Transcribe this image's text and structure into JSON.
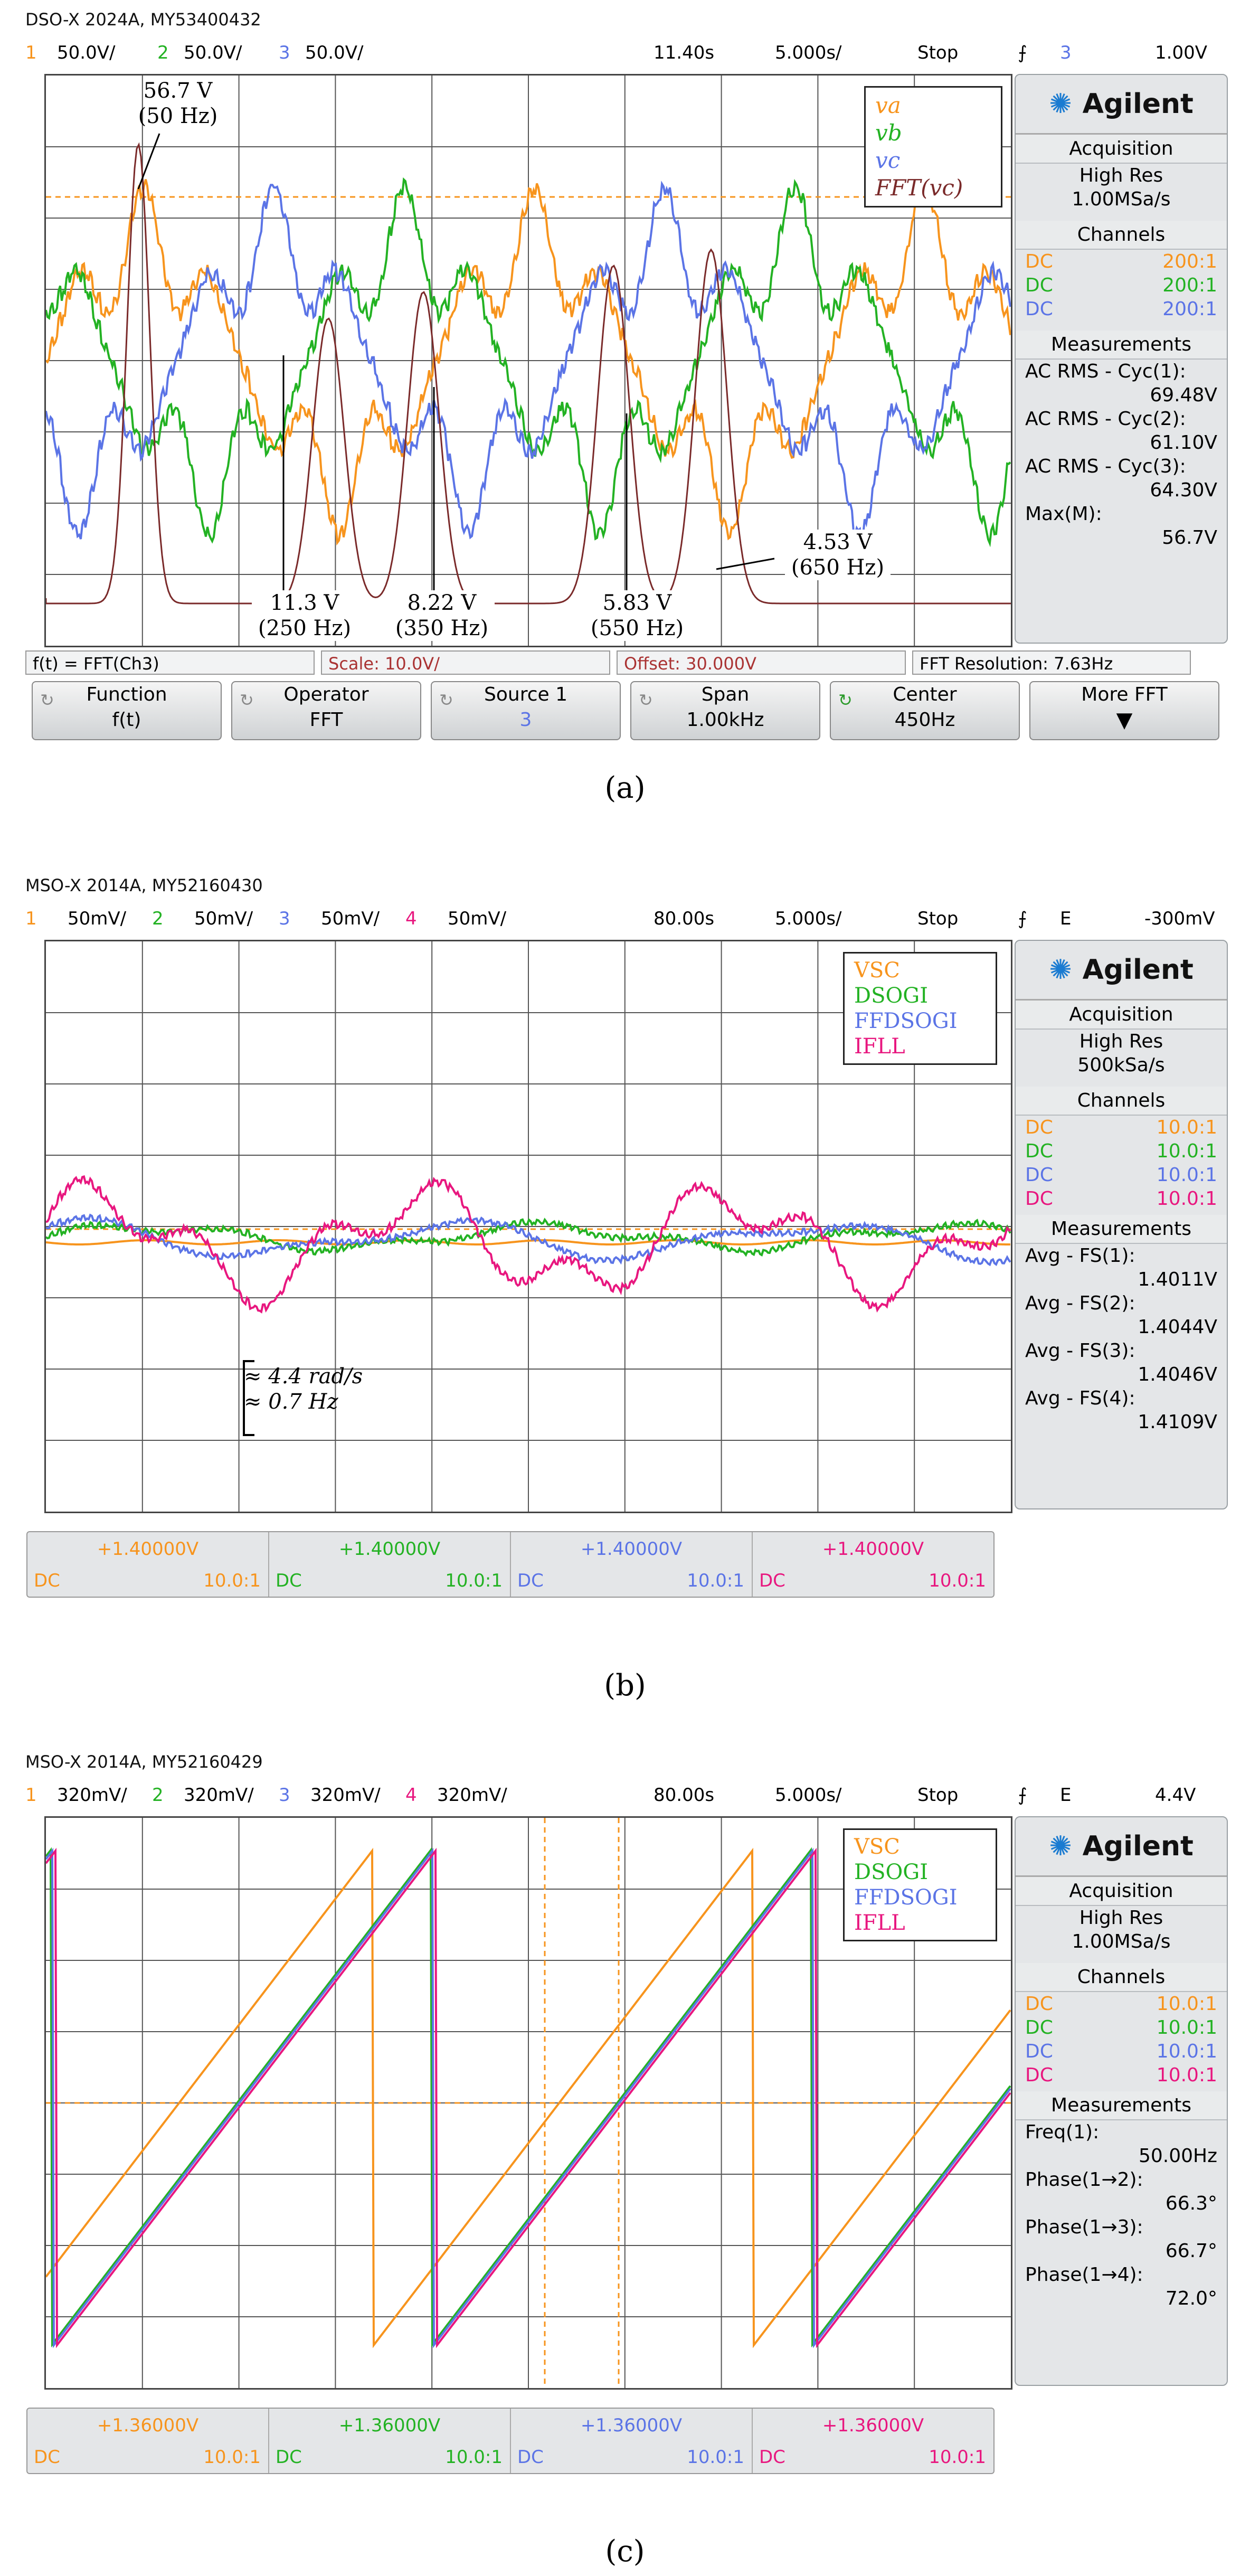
{
  "colors": {
    "ch1": "#f7941d",
    "ch2": "#23b223",
    "ch3": "#5b74e6",
    "ch4": "#e8177f",
    "fft": "#7a2a2a",
    "grid": "#555555"
  },
  "panel_a": {
    "caption": "(a)",
    "device": "DSO-X 2024A, MY53400432",
    "ch1_num": "1",
    "ch1_scale": "50.0V/",
    "ch2_num": "2",
    "ch2_scale": "50.0V/",
    "ch3_num": "3",
    "ch3_scale": "50.0V/",
    "time_pos": "11.40s",
    "time_scale": "5.000s/",
    "run_state": "Stop",
    "trig_icon": "trigger-edge-icon",
    "trig_ch": "3",
    "trig_level": "1.00V",
    "logo": "Agilent",
    "acq_title": "Acquisition",
    "acq_mode": "High Res",
    "acq_rate": "1.00MSa/s",
    "chan_title": "Channels",
    "channels": [
      {
        "coupling": "DC",
        "ratio": "200:1"
      },
      {
        "coupling": "DC",
        "ratio": "200:1"
      },
      {
        "coupling": "DC",
        "ratio": "200:1"
      }
    ],
    "meas_title": "Measurements",
    "measurements": [
      {
        "label": "AC RMS - Cyc(1):",
        "value": "69.48V"
      },
      {
        "label": "AC RMS - Cyc(2):",
        "value": "61.10V"
      },
      {
        "label": "AC RMS - Cyc(3):",
        "value": "64.30V"
      },
      {
        "label": "Max(M):",
        "value": "56.7V"
      }
    ],
    "legend": [
      "va",
      "vb",
      "vc",
      "FFT(vc)"
    ],
    "annotations": [
      {
        "value": "56.7 V",
        "freq": "(50 Hz)"
      },
      {
        "value": "11.3 V",
        "freq": "(250 Hz)"
      },
      {
        "value": "8.22 V",
        "freq": "(350 Hz)"
      },
      {
        "value": "5.83 V",
        "freq": "(550 Hz)"
      },
      {
        "value": "4.53 V",
        "freq": "(650 Hz)"
      }
    ],
    "fft_bar": {
      "func": "f(t) = FFT(Ch3)",
      "scale": "Scale: 10.0V/",
      "offset": "Offset: 30.000V",
      "resolution": "FFT Resolution: 7.63Hz"
    },
    "softkeys": [
      {
        "title": "Function",
        "value": "f(t)"
      },
      {
        "title": "Operator",
        "value": "FFT"
      },
      {
        "title": "Source 1",
        "value": "3"
      },
      {
        "title": "Span",
        "value": "1.00kHz"
      },
      {
        "title": "Center",
        "value": "450Hz"
      },
      {
        "title": "More FFT",
        "value": ""
      }
    ]
  },
  "panel_b": {
    "caption": "(b)",
    "device": "MSO-X 2014A, MY52160430",
    "ch1_num": "1",
    "ch1_scale": "50mV/",
    "ch2_num": "2",
    "ch2_scale": "50mV/",
    "ch3_num": "3",
    "ch3_scale": "50mV/",
    "ch4_num": "4",
    "ch4_scale": "50mV/",
    "time_pos": "80.00s",
    "time_scale": "5.000s/",
    "run_state": "Stop",
    "trig_mode": "E",
    "trig_level": "-300mV",
    "logo": "Agilent",
    "acq_title": "Acquisition",
    "acq_mode": "High Res",
    "acq_rate": "500kSa/s",
    "chan_title": "Channels",
    "channels": [
      {
        "coupling": "DC",
        "ratio": "10.0:1"
      },
      {
        "coupling": "DC",
        "ratio": "10.0:1"
      },
      {
        "coupling": "DC",
        "ratio": "10.0:1"
      },
      {
        "coupling": "DC",
        "ratio": "10.0:1"
      }
    ],
    "meas_title": "Measurements",
    "measurements": [
      {
        "label": "Avg - FS(1):",
        "value": "1.4011V"
      },
      {
        "label": "Avg - FS(2):",
        "value": "1.4044V"
      },
      {
        "label": "Avg - FS(3):",
        "value": "1.4046V"
      },
      {
        "label": "Avg - FS(4):",
        "value": "1.4109V"
      }
    ],
    "legend": [
      "VSC",
      "DSOGI",
      "FFDSOGI",
      "IFLL"
    ],
    "bracket_1": "≈ 4.4 rad/s",
    "bracket_2": "≈ 0.7 Hz",
    "offsets": [
      {
        "value": "+1.40000V",
        "coupling": "DC",
        "ratio": "10.0:1"
      },
      {
        "value": "+1.40000V",
        "coupling": "DC",
        "ratio": "10.0:1"
      },
      {
        "value": "+1.40000V",
        "coupling": "DC",
        "ratio": "10.0:1"
      },
      {
        "value": "+1.40000V",
        "coupling": "DC",
        "ratio": "10.0:1"
      }
    ]
  },
  "panel_c": {
    "caption": "(c)",
    "device": "MSO-X 2014A, MY52160429",
    "ch1_num": "1",
    "ch1_scale": "320mV/",
    "ch2_num": "2",
    "ch2_scale": "320mV/",
    "ch3_num": "3",
    "ch3_scale": "320mV/",
    "ch4_num": "4",
    "ch4_scale": "320mV/",
    "time_pos": "80.00s",
    "time_scale": "5.000s/",
    "run_state": "Stop",
    "trig_mode": "E",
    "trig_level": "4.4V",
    "logo": "Agilent",
    "acq_title": "Acquisition",
    "acq_mode": "High Res",
    "acq_rate": "1.00MSa/s",
    "chan_title": "Channels",
    "channels": [
      {
        "coupling": "DC",
        "ratio": "10.0:1"
      },
      {
        "coupling": "DC",
        "ratio": "10.0:1"
      },
      {
        "coupling": "DC",
        "ratio": "10.0:1"
      },
      {
        "coupling": "DC",
        "ratio": "10.0:1"
      }
    ],
    "meas_title": "Measurements",
    "measurements": [
      {
        "label": "Freq(1):",
        "value": "50.00Hz"
      },
      {
        "label": "Phase(1→2):",
        "value": "66.3°"
      },
      {
        "label": "Phase(1→3):",
        "value": "66.7°"
      },
      {
        "label": "Phase(1→4):",
        "value": "72.0°"
      }
    ],
    "legend": [
      "VSC",
      "DSOGI",
      "FFDSOGI",
      "IFLL"
    ],
    "offsets": [
      {
        "value": "+1.36000V",
        "coupling": "DC",
        "ratio": "10.0:1"
      },
      {
        "value": "+1.36000V",
        "coupling": "DC",
        "ratio": "10.0:1"
      },
      {
        "value": "+1.36000V",
        "coupling": "DC",
        "ratio": "10.0:1"
      },
      {
        "value": "+1.36000V",
        "coupling": "DC",
        "ratio": "10.0:1"
      }
    ]
  }
}
